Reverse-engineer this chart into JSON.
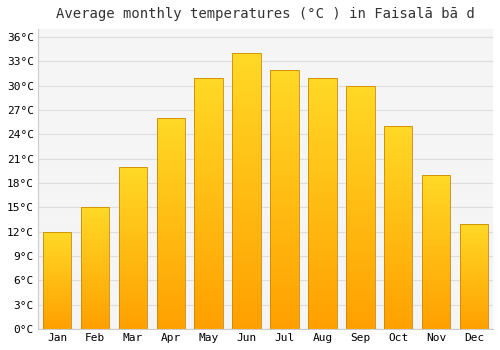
{
  "months": [
    "Jan",
    "Feb",
    "Mar",
    "Apr",
    "May",
    "Jun",
    "Jul",
    "Aug",
    "Sep",
    "Oct",
    "Nov",
    "Dec"
  ],
  "temperatures": [
    12,
    15,
    20,
    26,
    31,
    34,
    32,
    31,
    30,
    25,
    19,
    13
  ],
  "bar_color_top": "#FFCC33",
  "bar_color_bottom": "#FFA000",
  "bar_edge_color": "#CC8800",
  "background_color": "#FFFFFF",
  "plot_bg_color": "#F5F5F5",
  "grid_color": "#DDDDDD",
  "title": "Average monthly temperatures (°C ) in Faisalā bā d",
  "title_fontsize": 10,
  "ylabel_ticks": [
    0,
    3,
    6,
    9,
    12,
    15,
    18,
    21,
    24,
    27,
    30,
    33,
    36
  ],
  "ylim": [
    0,
    37
  ],
  "tick_label_suffix": "°C",
  "tick_fontsize": 8,
  "bar_width": 0.75
}
